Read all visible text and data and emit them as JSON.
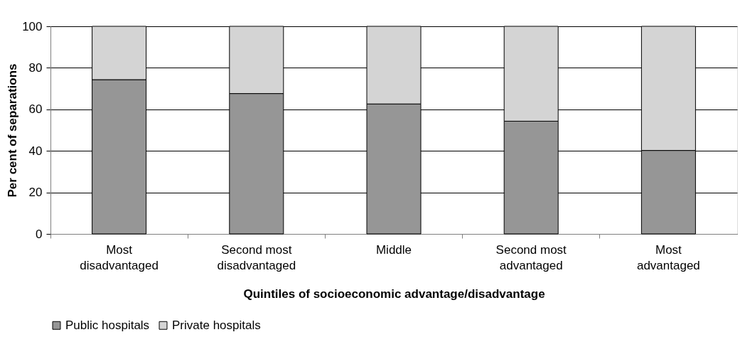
{
  "chart_data": {
    "type": "bar",
    "stacked": true,
    "xlabel": "Quintiles of socioeconomic advantage/disadvantage",
    "ylabel": "Per cent of separations",
    "categories": [
      "Most disadvantaged",
      "Second most disadvantaged",
      "Middle",
      "Second most advantaged",
      "Most advantaged"
    ],
    "series": [
      {
        "name": "Public hospitals",
        "color": "#969696",
        "values": [
          74.3,
          67.6,
          62.6,
          54.3,
          40.2
        ]
      },
      {
        "name": "Private hospitals",
        "color": "#d4d4d4",
        "values": [
          25.7,
          32.4,
          37.4,
          45.7,
          59.8
        ]
      }
    ],
    "ylim": [
      0,
      100
    ],
    "yticks": [
      0,
      20,
      40,
      60,
      80,
      100
    ],
    "grid": "y",
    "legend": "bottom"
  }
}
